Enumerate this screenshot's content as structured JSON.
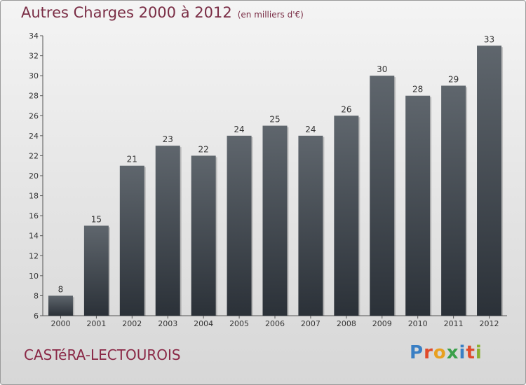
{
  "title": "Autres Charges 2000 à 2012",
  "title_unit": "(en milliers d'€)",
  "place": "CASTéRA-LECTOUROIS",
  "logo": {
    "text": "Proxiti",
    "letter_colors": [
      "#3a7fc4",
      "#e04a2a",
      "#e8a020",
      "#3aa04a",
      "#3a7fc4",
      "#e04a2a",
      "#8ab030"
    ]
  },
  "colors": {
    "bar_top": "#5f666d",
    "bar_bottom": "#2b3138",
    "title": "#7a2d45"
  },
  "chart_data": {
    "type": "bar",
    "categories": [
      "2000",
      "2001",
      "2002",
      "2003",
      "2004",
      "2005",
      "2006",
      "2007",
      "2008",
      "2009",
      "2010",
      "2011",
      "2012"
    ],
    "values": [
      8,
      15,
      21,
      23,
      22,
      24,
      25,
      24,
      26,
      30,
      28,
      29,
      33
    ],
    "ylim": [
      6,
      34
    ],
    "yticks": [
      6,
      8,
      10,
      12,
      14,
      16,
      18,
      20,
      22,
      24,
      26,
      28,
      30,
      32,
      34
    ],
    "grid": false,
    "xlabel": "",
    "ylabel": ""
  }
}
